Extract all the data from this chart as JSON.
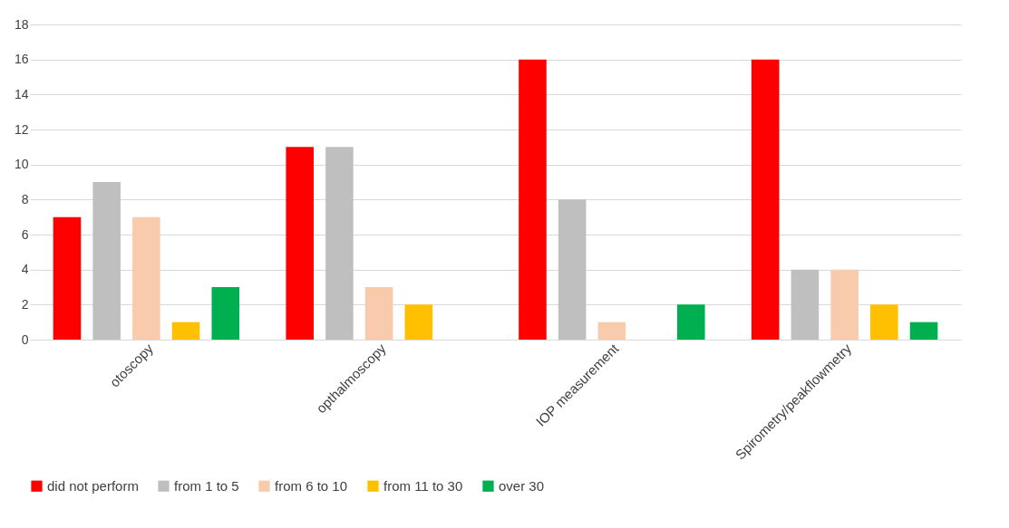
{
  "chart_data": {
    "type": "bar",
    "categories": [
      "otoscopy",
      "opthalmoscopy",
      "IOP measurement",
      "Spirometry/peakflowmetry"
    ],
    "series": [
      {
        "name": "did not perform",
        "color": "#ff0000",
        "values": [
          7,
          11,
          16,
          16
        ]
      },
      {
        "name": "from 1 to 5",
        "color": "#bfbfbf",
        "values": [
          9,
          11,
          8,
          4
        ]
      },
      {
        "name": "from 6 to 10",
        "color": "#f8cbad",
        "values": [
          7,
          3,
          1,
          4
        ]
      },
      {
        "name": "from 11 to 30",
        "color": "#ffc000",
        "values": [
          1,
          2,
          0,
          2
        ]
      },
      {
        "name": "over 30",
        "color": "#00b050",
        "values": [
          3,
          0,
          2,
          1
        ]
      }
    ],
    "ylim": [
      0,
      18
    ],
    "yticks": [
      0,
      2,
      4,
      6,
      8,
      10,
      12,
      14,
      16,
      18
    ],
    "grid": "y",
    "legend": "bottom"
  }
}
